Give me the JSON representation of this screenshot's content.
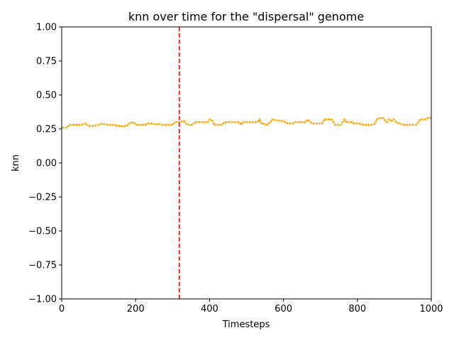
{
  "chart_data": {
    "type": "line",
    "title": "knn over time for the \"dispersal\" genome",
    "xlabel": "Timesteps",
    "ylabel": "knn",
    "xlim": [
      0,
      1000
    ],
    "ylim": [
      -1.0,
      1.0
    ],
    "x_ticks": [
      "0",
      "200",
      "400",
      "600",
      "800",
      "1000"
    ],
    "y_ticks": [
      "−1.00",
      "−0.75",
      "−0.50",
      "−0.25",
      "0.00",
      "0.25",
      "0.50",
      "0.75",
      "1.00"
    ],
    "grid": false,
    "legend": "none",
    "series": [
      {
        "color": "#ffa500",
        "style": "dotted",
        "points": [
          [
            0,
            0.26
          ],
          [
            15,
            0.26
          ],
          [
            20,
            0.28
          ],
          [
            40,
            0.28
          ],
          [
            55,
            0.28
          ],
          [
            65,
            0.29
          ],
          [
            72,
            0.27
          ],
          [
            80,
            0.27
          ],
          [
            100,
            0.28
          ],
          [
            110,
            0.29
          ],
          [
            120,
            0.28
          ],
          [
            140,
            0.28
          ],
          [
            160,
            0.27
          ],
          [
            175,
            0.27
          ],
          [
            182,
            0.29
          ],
          [
            195,
            0.3
          ],
          [
            200,
            0.28
          ],
          [
            225,
            0.28
          ],
          [
            232,
            0.29
          ],
          [
            245,
            0.29
          ],
          [
            255,
            0.28
          ],
          [
            262,
            0.29
          ],
          [
            270,
            0.28
          ],
          [
            300,
            0.28
          ],
          [
            305,
            0.3
          ],
          [
            320,
            0.3
          ],
          [
            330,
            0.31
          ],
          [
            340,
            0.28
          ],
          [
            355,
            0.28
          ],
          [
            360,
            0.3
          ],
          [
            395,
            0.3
          ],
          [
            400,
            0.32
          ],
          [
            408,
            0.31
          ],
          [
            412,
            0.28
          ],
          [
            435,
            0.28
          ],
          [
            440,
            0.3
          ],
          [
            480,
            0.3
          ],
          [
            485,
            0.28
          ],
          [
            490,
            0.3
          ],
          [
            530,
            0.3
          ],
          [
            535,
            0.32
          ],
          [
            540,
            0.29
          ],
          [
            555,
            0.28
          ],
          [
            565,
            0.3
          ],
          [
            570,
            0.32
          ],
          [
            585,
            0.31
          ],
          [
            595,
            0.31
          ],
          [
            605,
            0.3
          ],
          [
            612,
            0.29
          ],
          [
            625,
            0.29
          ],
          [
            630,
            0.3
          ],
          [
            660,
            0.3
          ],
          [
            665,
            0.32
          ],
          [
            672,
            0.3
          ],
          [
            680,
            0.29
          ],
          [
            705,
            0.29
          ],
          [
            710,
            0.32
          ],
          [
            730,
            0.32
          ],
          [
            735,
            0.3
          ],
          [
            740,
            0.28
          ],
          [
            755,
            0.28
          ],
          [
            760,
            0.3
          ],
          [
            765,
            0.32
          ],
          [
            770,
            0.3
          ],
          [
            785,
            0.3
          ],
          [
            790,
            0.29
          ],
          [
            800,
            0.29
          ],
          [
            805,
            0.29
          ],
          [
            815,
            0.28
          ],
          [
            840,
            0.28
          ],
          [
            848,
            0.29
          ],
          [
            852,
            0.32
          ],
          [
            860,
            0.33
          ],
          [
            870,
            0.33
          ],
          [
            875,
            0.31
          ],
          [
            880,
            0.3
          ],
          [
            885,
            0.32
          ],
          [
            893,
            0.31
          ],
          [
            897,
            0.32
          ],
          [
            905,
            0.3
          ],
          [
            915,
            0.29
          ],
          [
            925,
            0.28
          ],
          [
            935,
            0.28
          ],
          [
            945,
            0.28
          ],
          [
            960,
            0.28
          ],
          [
            965,
            0.3
          ],
          [
            970,
            0.32
          ],
          [
            985,
            0.32
          ],
          [
            990,
            0.33
          ],
          [
            1000,
            0.33
          ]
        ]
      }
    ],
    "annotations": [
      {
        "type": "vline",
        "x": 318,
        "color": "#ff0000",
        "style": "dashed"
      }
    ]
  }
}
